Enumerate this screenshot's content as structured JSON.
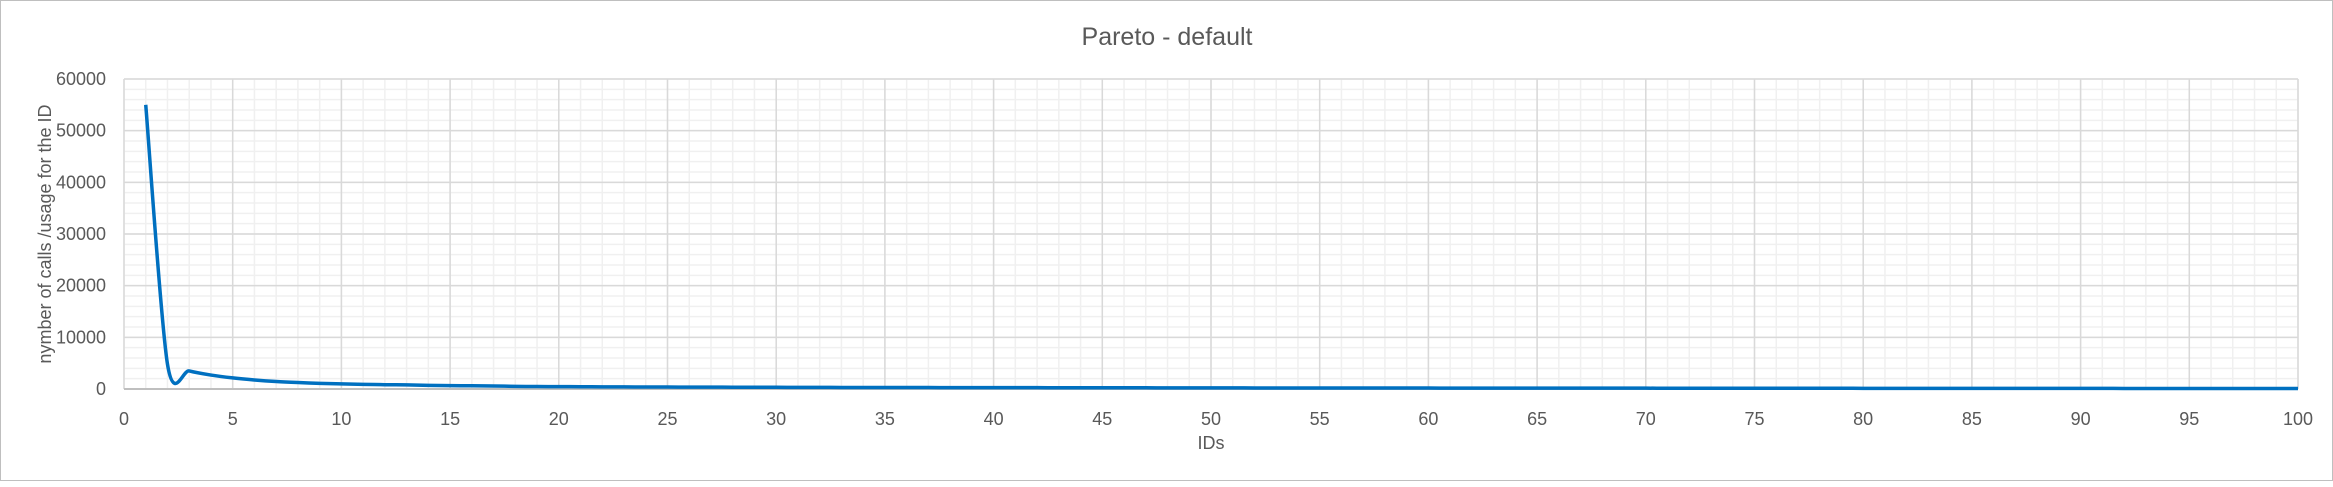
{
  "chart_data": {
    "type": "line",
    "title": "Pareto - default",
    "xlabel": "IDs",
    "ylabel": "nymber of calls /usage for the ID",
    "xlim": [
      0,
      100
    ],
    "ylim": [
      0,
      60000
    ],
    "x_ticks": [
      0,
      5,
      10,
      15,
      20,
      25,
      30,
      35,
      40,
      45,
      50,
      55,
      60,
      65,
      70,
      75,
      80,
      85,
      90,
      95,
      100
    ],
    "y_ticks": [
      0,
      10000,
      20000,
      30000,
      40000,
      50000,
      60000
    ],
    "x_minor_step": 1,
    "y_minor_step": 2000,
    "grid": true,
    "legend": "none",
    "colors": {
      "line": "#0070c0",
      "major_grid": "#d9d9d9",
      "minor_grid": "#f0f0f0",
      "text": "#595959"
    },
    "x": [
      1,
      2,
      3,
      4,
      5,
      6,
      7,
      8,
      9,
      10,
      11,
      12,
      13,
      14,
      15,
      16,
      17,
      18,
      19,
      20,
      21,
      22,
      23,
      24,
      25,
      26,
      27,
      28,
      29,
      30,
      31,
      32,
      33,
      34,
      35,
      36,
      37,
      38,
      39,
      40,
      41,
      42,
      43,
      44,
      45,
      46,
      47,
      48,
      49,
      50,
      51,
      52,
      53,
      54,
      55,
      56,
      57,
      58,
      59,
      60,
      61,
      62,
      63,
      64,
      65,
      66,
      67,
      68,
      69,
      70,
      71,
      72,
      73,
      74,
      75,
      76,
      77,
      78,
      79,
      80,
      81,
      82,
      83,
      84,
      85,
      86,
      87,
      88,
      89,
      90,
      91,
      92,
      93,
      94,
      95,
      96,
      97,
      98,
      99,
      100
    ],
    "series": [
      {
        "values": [
          55000,
          4800,
          3500,
          2700,
          2150,
          1750,
          1450,
          1250,
          1100,
          980,
          900,
          830,
          800,
          700,
          650,
          620,
          590,
          500,
          480,
          460,
          440,
          420,
          400,
          390,
          380,
          370,
          360,
          350,
          340,
          330,
          320,
          310,
          300,
          295,
          290,
          285,
          280,
          275,
          270,
          265,
          260,
          255,
          250,
          245,
          240,
          235,
          230,
          225,
          220,
          215,
          210,
          205,
          200,
          198,
          195,
          192,
          190,
          188,
          185,
          182,
          180,
          178,
          175,
          172,
          170,
          168,
          165,
          162,
          160,
          158,
          155,
          152,
          150,
          148,
          145,
          142,
          140,
          138,
          135,
          132,
          130,
          128,
          126,
          124,
          122,
          120,
          118,
          116,
          114,
          112,
          110,
          108,
          106,
          104,
          102,
          100,
          98,
          96,
          94,
          92
        ]
      }
    ]
  }
}
